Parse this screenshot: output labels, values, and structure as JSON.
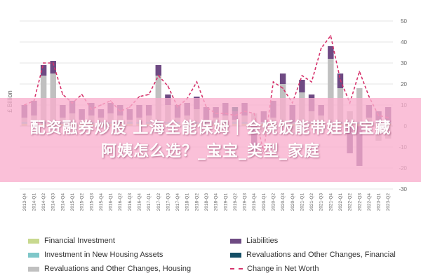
{
  "chart_data": {
    "type": "bar",
    "title": "",
    "ylabel": "£ Billion",
    "xlabel": "",
    "ylim": [
      -30,
      50
    ],
    "yticks": [
      50,
      40,
      30,
      20,
      10,
      0,
      -10,
      -20,
      -30
    ],
    "grid": true,
    "legend_position": "bottom",
    "categories": [
      "2013-Q4",
      "2014-Q1",
      "2014-Q2",
      "2014-Q3",
      "2014-Q4",
      "2015-Q1",
      "2015-Q2",
      "2015-Q3",
      "2015-Q4",
      "2016-Q1",
      "2016-Q2",
      "2016-Q3",
      "2016-Q4",
      "2017-Q1",
      "2017-Q2",
      "2017-Q3",
      "2017-Q4",
      "2018-Q1",
      "2018-Q2",
      "2018-Q3",
      "2018-Q4",
      "2019-Q1",
      "2019-Q2",
      "2019-Q3",
      "2019-Q4",
      "2020-Q1",
      "2020-Q2",
      "2020-Q3",
      "2020-Q4",
      "2021-Q1",
      "2021-Q2",
      "2021-Q3",
      "2021-Q4",
      "2022-Q1",
      "2022-Q2",
      "2022-Q3",
      "2022-Q4",
      "2023-Q1",
      "2023-Q2"
    ],
    "series": [
      {
        "name": "Financial Investment",
        "kind": "bar",
        "color": "#c8d98f",
        "values": [
          1,
          1,
          1,
          1,
          1,
          1,
          1,
          1,
          1,
          1,
          1,
          1,
          1,
          1,
          1,
          1,
          1,
          1,
          1,
          1,
          1,
          1,
          1,
          1,
          1,
          1,
          1,
          1,
          1,
          1,
          1,
          1,
          1,
          1,
          1,
          1,
          1,
          1,
          1
        ]
      },
      {
        "name": "Investment in New Housing Assets",
        "kind": "bar",
        "color": "#7fc7c9",
        "values": [
          1,
          1,
          1,
          1,
          1,
          1,
          1,
          1,
          1,
          1,
          1,
          1,
          1,
          1,
          1,
          1,
          1,
          1,
          1,
          1,
          1,
          1,
          1,
          1,
          1,
          1,
          1,
          1,
          1,
          1,
          1,
          1,
          1,
          1,
          1,
          1,
          1,
          1,
          1
        ]
      },
      {
        "name": "Revaluations and Other Changes, Housing",
        "kind": "bar",
        "color": "#c0c0c0",
        "values": [
          2,
          3,
          22,
          23,
          2,
          4,
          1,
          3,
          2,
          4,
          3,
          1,
          2,
          3,
          22,
          8,
          2,
          3,
          6,
          1,
          2,
          3,
          1,
          3,
          4,
          -3,
          2,
          18,
          -4,
          14,
          5,
          3,
          30,
          16,
          5,
          16,
          2,
          -7,
          -6
        ]
      },
      {
        "name": "Liabilities",
        "kind": "bar",
        "color": "#6e4a83",
        "values": [
          6,
          7,
          5,
          6,
          6,
          6,
          5,
          6,
          4,
          5,
          5,
          5,
          6,
          5,
          5,
          5,
          6,
          6,
          6,
          6,
          5,
          6,
          4,
          6,
          -12,
          5,
          8,
          5,
          8,
          6,
          8,
          5,
          6,
          7,
          -13,
          -19,
          6,
          5,
          7
        ]
      },
      {
        "name": "Revaluations and Other Changes, Financial",
        "kind": "bar",
        "color": "#144e66",
        "values": [
          0,
          0,
          0,
          0,
          0,
          0,
          0,
          0,
          0,
          0,
          0,
          0,
          0,
          0,
          0,
          0,
          0,
          0,
          0,
          0,
          0,
          0,
          2,
          0,
          0,
          0,
          0,
          0,
          0,
          0,
          0,
          0,
          0,
          0,
          0,
          0,
          0,
          0,
          0
        ]
      },
      {
        "name": "Change in Net Worth",
        "kind": "line",
        "color": "#d6336c",
        "values": [
          10,
          12,
          30,
          30,
          15,
          11,
          15,
          8,
          10,
          12,
          7,
          9,
          14,
          15,
          24,
          19,
          9,
          13,
          21,
          9,
          6,
          6,
          5,
          7,
          6,
          -12,
          21,
          18,
          11,
          24,
          21,
          37,
          43,
          22,
          11,
          26,
          14,
          5,
          4
        ]
      }
    ]
  },
  "banner": {
    "line1": "配资融券炒股 上海全能保姆｜会烧饭能带娃的宝藏",
    "line2": "阿姨怎么选？_宝宝_类型_家庭"
  },
  "legend": [
    {
      "label": "Financial Investment",
      "color": "#c8d98f",
      "style": "box"
    },
    {
      "label": "Liabilities",
      "color": "#6e4a83",
      "style": "box"
    },
    {
      "label": "Investment in New Housing Assets",
      "color": "#7fc7c9",
      "style": "box"
    },
    {
      "label": "Revaluations and Other Changes, Financial",
      "color": "#144e66",
      "style": "box"
    },
    {
      "label": "Revaluations and Other Changes, Housing",
      "color": "#c0c0c0",
      "style": "box"
    },
    {
      "label": "Change in Net Worth",
      "color": "#d6336c",
      "style": "dash"
    }
  ]
}
